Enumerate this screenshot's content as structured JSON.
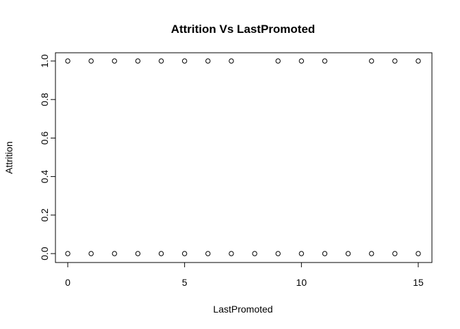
{
  "chart_data": {
    "type": "scatter",
    "title": "Attrition Vs LastPromoted",
    "xlabel": "LastPromoted",
    "ylabel": "Attrition",
    "xlim": [
      0,
      15
    ],
    "ylim": [
      0,
      1
    ],
    "x_ticks": [
      0,
      5,
      10,
      15
    ],
    "x_tick_labels": [
      "0",
      "5",
      "10",
      "15"
    ],
    "y_ticks": [
      0,
      0.2,
      0.4,
      0.6,
      0.8,
      1
    ],
    "y_tick_labels": [
      "0.0",
      "0.2",
      "0.4",
      "0.6",
      "0.8",
      "1.0"
    ],
    "grid": false,
    "legend": "none",
    "marker": "open-circle",
    "points": [
      {
        "x": 0,
        "y": 1
      },
      {
        "x": 1,
        "y": 1
      },
      {
        "x": 2,
        "y": 1
      },
      {
        "x": 3,
        "y": 1
      },
      {
        "x": 4,
        "y": 1
      },
      {
        "x": 5,
        "y": 1
      },
      {
        "x": 6,
        "y": 1
      },
      {
        "x": 7,
        "y": 1
      },
      {
        "x": 9,
        "y": 1
      },
      {
        "x": 10,
        "y": 1
      },
      {
        "x": 11,
        "y": 1
      },
      {
        "x": 13,
        "y": 1
      },
      {
        "x": 14,
        "y": 1
      },
      {
        "x": 15,
        "y": 1
      },
      {
        "x": 0,
        "y": 0
      },
      {
        "x": 1,
        "y": 0
      },
      {
        "x": 2,
        "y": 0
      },
      {
        "x": 3,
        "y": 0
      },
      {
        "x": 4,
        "y": 0
      },
      {
        "x": 5,
        "y": 0
      },
      {
        "x": 6,
        "y": 0
      },
      {
        "x": 7,
        "y": 0
      },
      {
        "x": 8,
        "y": 0
      },
      {
        "x": 9,
        "y": 0
      },
      {
        "x": 10,
        "y": 0
      },
      {
        "x": 11,
        "y": 0
      },
      {
        "x": 12,
        "y": 0
      },
      {
        "x": 13,
        "y": 0
      },
      {
        "x": 14,
        "y": 0
      },
      {
        "x": 15,
        "y": 0
      }
    ]
  }
}
